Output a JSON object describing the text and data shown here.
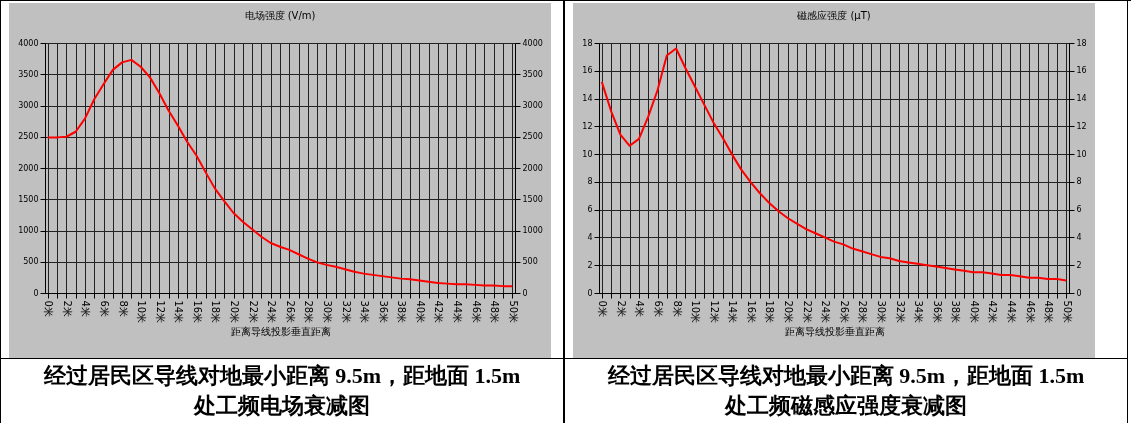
{
  "chart_data": [
    {
      "type": "line",
      "title": "电场强度 (V/m)",
      "xlabel": "距离导线投影垂直距离",
      "categories": [
        "0米",
        null,
        "2米",
        null,
        "4米",
        null,
        "6米",
        null,
        "8米",
        null,
        "10米",
        null,
        "12米",
        null,
        "14米",
        null,
        "16米",
        null,
        "18米",
        null,
        "20米",
        null,
        "22米",
        null,
        "24米",
        null,
        "26米",
        null,
        "28米",
        null,
        "30米",
        null,
        "32米",
        null,
        "34米",
        null,
        "36米",
        null,
        "38米",
        null,
        "40米",
        null,
        "42米",
        null,
        "44米",
        null,
        "46米",
        null,
        "48米",
        null,
        "50米"
      ],
      "series": [
        {
          "color": "#ff0000",
          "values": [
            2490,
            2490,
            2500,
            2580,
            2790,
            3100,
            3340,
            3570,
            3690,
            3730,
            3620,
            3450,
            3200,
            2920,
            2680,
            2420,
            2200,
            1930,
            1670,
            1470,
            1280,
            1140,
            1020,
            900,
            800,
            740,
            690,
            620,
            550,
            490,
            450,
            420,
            380,
            340,
            310,
            290,
            270,
            250,
            230,
            220,
            200,
            180,
            160,
            150,
            140,
            140,
            130,
            120,
            120,
            110,
            110
          ]
        }
      ],
      "ylim": [
        0,
        4000
      ],
      "yticks": [
        0,
        500,
        1000,
        1500,
        2000,
        2500,
        3000,
        3500,
        4000
      ],
      "y2lim": [
        0,
        4000
      ],
      "y2ticks": [
        0,
        500,
        1000,
        1500,
        2000,
        2500,
        3000,
        3500,
        4000
      ],
      "grid": true,
      "annotations": [
        "经过居民区导线对地最小距离 9.5m，距地面 1.5m 处工频电场衰减图"
      ]
    },
    {
      "type": "line",
      "title": "磁感应强度 (μT)",
      "xlabel": "距离导线投影垂直距离",
      "categories": [
        "0米",
        null,
        "2米",
        null,
        "4米",
        null,
        "6米",
        null,
        "8米",
        null,
        "10米",
        null,
        "12米",
        null,
        "14米",
        null,
        "16米",
        null,
        "18米",
        null,
        "20米",
        null,
        "22米",
        null,
        "24米",
        null,
        "26米",
        null,
        "28米",
        null,
        "30米",
        null,
        "32米",
        null,
        "34米",
        null,
        "36米",
        null,
        "38米",
        null,
        "40米",
        null,
        "42米",
        null,
        "44米",
        null,
        "46米",
        null,
        "48米",
        null,
        "50米"
      ],
      "series": [
        {
          "color": "#ff0000",
          "values": [
            15.2,
            13.1,
            11.4,
            10.6,
            11.1,
            12.7,
            14.6,
            17.1,
            17.6,
            16.2,
            14.9,
            13.6,
            12.3,
            11.2,
            10.0,
            8.9,
            8.0,
            7.2,
            6.5,
            5.9,
            5.4,
            5.0,
            4.6,
            4.3,
            4.0,
            3.7,
            3.5,
            3.2,
            3.0,
            2.8,
            2.6,
            2.5,
            2.3,
            2.2,
            2.1,
            2.0,
            1.9,
            1.8,
            1.7,
            1.6,
            1.5,
            1.5,
            1.4,
            1.3,
            1.3,
            1.2,
            1.1,
            1.1,
            1.0,
            1.0,
            0.9
          ]
        }
      ],
      "ylim": [
        0,
        18
      ],
      "yticks": [
        0,
        2,
        4,
        6,
        8,
        10,
        12,
        14,
        16,
        18
      ],
      "y2lim": [
        0,
        18
      ],
      "y2ticks": [
        0,
        2,
        4,
        6,
        8,
        10,
        12,
        14,
        16,
        18
      ],
      "grid": true,
      "annotations": [
        "经过居民区导线对地最小距离 9.5m，距地面 1.5m 处工频磁感应强度衰减图"
      ]
    }
  ]
}
